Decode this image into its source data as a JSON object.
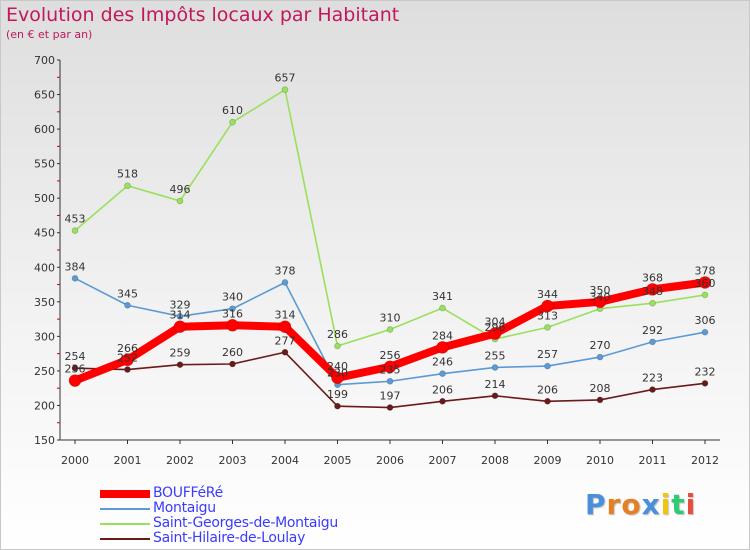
{
  "title": "Evolution des Impôts locaux par Habitant",
  "subtitle": "(en € et par an)",
  "logo": {
    "text": "Proxiti",
    "colors": [
      "#4a90d9",
      "#e67e22",
      "#e67e22",
      "#4a90d9",
      "#f1c40f",
      "#2ecc71",
      "#e74c3c"
    ]
  },
  "chart_data": {
    "type": "line",
    "title": "Evolution des Impôts locaux par Habitant",
    "subtitle": "(en € et par an)",
    "xlabel": "",
    "ylabel": "",
    "ylim": [
      150,
      700
    ],
    "yticks": [
      150,
      200,
      250,
      300,
      350,
      400,
      450,
      500,
      550,
      600,
      650,
      700
    ],
    "grid": false,
    "legend_position": "bottom",
    "x": [
      "2000",
      "2001",
      "2002",
      "2003",
      "2004",
      "2005",
      "2006",
      "2007",
      "2008",
      "2009",
      "2010",
      "2011",
      "2012"
    ],
    "series": [
      {
        "name": "Saint-Georges-de-Montaigu",
        "color": "#99e05b",
        "values": [
          453,
          518,
          496,
          610,
          657,
          286,
          310,
          341,
          296,
          313,
          340,
          348,
          360
        ]
      },
      {
        "name": "Montaigu",
        "color": "#5b9bd5",
        "values": [
          384,
          345,
          329,
          340,
          378,
          230,
          235,
          246,
          255,
          257,
          270,
          292,
          306
        ]
      },
      {
        "name": "Saint-Hilaire-de-Loulay",
        "color": "#6b1a1a",
        "values": [
          254,
          252,
          259,
          260,
          277,
          199,
          197,
          206,
          214,
          206,
          208,
          223,
          232
        ]
      },
      {
        "name": "BOUFFéRé",
        "color": "#ff0000",
        "values": [
          236,
          266,
          314,
          316,
          314,
          240,
          256,
          284,
          304,
          344,
          350,
          368,
          378
        ]
      }
    ],
    "data_labels": {
      "Saint-Georges-de-Montaigu": [
        "453",
        "518",
        "496",
        "610",
        "657",
        "286",
        "310",
        "341",
        "296",
        "313",
        "340",
        "348",
        "360"
      ],
      "Montaigu": [
        "384",
        "345",
        "329",
        "340",
        "378",
        "230",
        "235",
        "246",
        "255",
        "257",
        "270",
        "292",
        "306"
      ],
      "Saint-Hilaire-de-Loulay": [
        "254",
        "252",
        "259",
        "260",
        "277",
        "199",
        "197",
        "206",
        "214",
        "206",
        "208",
        "223",
        "232"
      ],
      "BOUFFéRé": [
        "236",
        "266",
        "314",
        "316",
        "314",
        "240",
        "256",
        "284",
        "304",
        "344",
        "350",
        "368",
        "378"
      ]
    }
  },
  "legend": [
    {
      "label": "BOUFFéRé",
      "color": "#ff0000"
    },
    {
      "label": "Montaigu",
      "color": "#5b9bd5"
    },
    {
      "label": "Saint-Georges-de-Montaigu",
      "color": "#99e05b"
    },
    {
      "label": "Saint-Hilaire-de-Loulay",
      "color": "#6b1a1a"
    }
  ]
}
